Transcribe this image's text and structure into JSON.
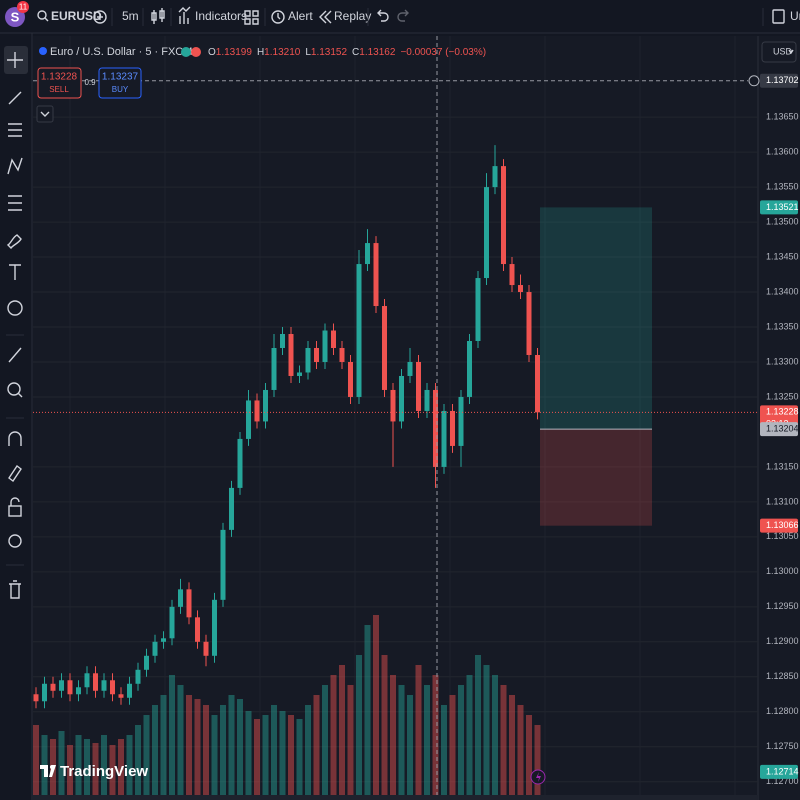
{
  "toolbar": {
    "avatar": "S",
    "badge": "11",
    "symbol": "EURUSD",
    "interval": "5m",
    "indicators": "Indicators",
    "alert": "Alert",
    "replay": "Replay",
    "right": "Ur"
  },
  "legend": {
    "title": "Euro / U.S. Dollar · 5 · FXCM",
    "ohlc": [
      {
        "label": "O",
        "value": "1.13199"
      },
      {
        "label": "H",
        "value": "1.13210"
      },
      {
        "label": "L",
        "value": "1.13152"
      },
      {
        "label": "C",
        "value": "1.13162"
      }
    ],
    "change": "−0.00037 (−0.03%)"
  },
  "trade": {
    "sell_price": "1.13228",
    "sell": "SELL",
    "spread": "0.9",
    "buy_price": "1.13237",
    "buy": "BUY"
  },
  "currency": "USD",
  "logo": "TradingView",
  "chart_data": {
    "type": "candlestick",
    "up_color": "#26a69a",
    "down_color": "#ef5350",
    "grid": true,
    "ylim": [
      1.12681,
      1.13766
    ],
    "yticks": [
      {
        "value": 1.1365,
        "label": "1.13650"
      },
      {
        "value": 1.136,
        "label": "1.13600"
      },
      {
        "value": 1.1355,
        "label": "1.13550"
      },
      {
        "value": 1.135,
        "label": "1.13500"
      },
      {
        "value": 1.1345,
        "label": "1.13450"
      },
      {
        "value": 1.134,
        "label": "1.13400"
      },
      {
        "value": 1.1335,
        "label": "1.13350"
      },
      {
        "value": 1.133,
        "label": "1.13300"
      },
      {
        "value": 1.1325,
        "label": "1.13250"
      },
      {
        "value": 1.1315,
        "label": "1.13150"
      },
      {
        "value": 1.131,
        "label": "1.13100"
      },
      {
        "value": 1.1305,
        "label": "1.13050"
      },
      {
        "value": 1.13,
        "label": "1.13000"
      },
      {
        "value": 1.1295,
        "label": "1.12950"
      },
      {
        "value": 1.129,
        "label": "1.12900"
      },
      {
        "value": 1.1285,
        "label": "1.12850"
      },
      {
        "value": 1.128,
        "label": "1.12800"
      },
      {
        "value": 1.1275,
        "label": "1.12750"
      },
      {
        "value": 1.127,
        "label": "1.12700"
      }
    ],
    "open": [
      1.12825,
      1.12815,
      1.1284,
      1.1283,
      1.12845,
      1.12825,
      1.12835,
      1.12855,
      1.1283,
      1.12845,
      1.12825,
      1.1282,
      1.1284,
      1.1286,
      1.1288,
      1.129,
      1.12905,
      1.1295,
      1.12975,
      1.12935,
      1.129,
      1.1288,
      1.1296,
      1.1306,
      1.1312,
      1.1319,
      1.13245,
      1.13215,
      1.1326,
      1.1332,
      1.1334,
      1.1328,
      1.13285,
      1.1332,
      1.133,
      1.13345,
      1.1332,
      1.133,
      1.1325,
      1.1344,
      1.1347,
      1.1338,
      1.1326,
      1.13215,
      1.1328,
      1.133,
      1.1323,
      1.1326,
      1.1315,
      1.1323,
      1.1318,
      1.1325,
      1.1333,
      1.1342,
      1.1355,
      1.1358,
      1.1344,
      1.1341,
      1.134,
      1.1331
    ],
    "high": [
      1.12835,
      1.1285,
      1.1285,
      1.12855,
      1.12855,
      1.12845,
      1.12865,
      1.12865,
      1.12855,
      1.12855,
      1.12835,
      1.1285,
      1.1287,
      1.1289,
      1.1291,
      1.12915,
      1.1296,
      1.1299,
      1.12985,
      1.12945,
      1.1291,
      1.1297,
      1.1307,
      1.1313,
      1.132,
      1.1326,
      1.13255,
      1.1327,
      1.1334,
      1.1335,
      1.1335,
      1.13295,
      1.1333,
      1.1333,
      1.13355,
      1.13355,
      1.1333,
      1.1331,
      1.1346,
      1.1349,
      1.1348,
      1.1339,
      1.1327,
      1.1329,
      1.1332,
      1.1331,
      1.1327,
      1.1327,
      1.1324,
      1.1324,
      1.1326,
      1.1334,
      1.1343,
      1.1357,
      1.1361,
      1.1359,
      1.1345,
      1.13425,
      1.1341,
      1.1332
    ],
    "low": [
      1.12805,
      1.12805,
      1.1282,
      1.1282,
      1.12815,
      1.12815,
      1.12825,
      1.1282,
      1.1282,
      1.12815,
      1.1281,
      1.1281,
      1.1283,
      1.1285,
      1.1287,
      1.1289,
      1.12895,
      1.1294,
      1.12925,
      1.1289,
      1.12865,
      1.1287,
      1.1295,
      1.1305,
      1.1311,
      1.1318,
      1.13205,
      1.13205,
      1.1325,
      1.1331,
      1.1327,
      1.1327,
      1.13275,
      1.1329,
      1.1329,
      1.1331,
      1.1329,
      1.1324,
      1.1324,
      1.1343,
      1.1337,
      1.1325,
      1.1315,
      1.13205,
      1.1327,
      1.1322,
      1.1322,
      1.1312,
      1.1314,
      1.1317,
      1.1315,
      1.1324,
      1.1332,
      1.1341,
      1.1354,
      1.1343,
      1.134,
      1.1339,
      1.133,
      1.13218
    ],
    "close": [
      1.12815,
      1.1284,
      1.1283,
      1.12845,
      1.12825,
      1.12835,
      1.12855,
      1.1283,
      1.12845,
      1.12825,
      1.1282,
      1.1284,
      1.1286,
      1.1288,
      1.129,
      1.12905,
      1.1295,
      1.12975,
      1.12935,
      1.129,
      1.1288,
      1.1296,
      1.1306,
      1.1312,
      1.1319,
      1.13245,
      1.13215,
      1.1326,
      1.1332,
      1.1334,
      1.1328,
      1.13285,
      1.1332,
      1.133,
      1.13345,
      1.1332,
      1.133,
      1.1325,
      1.1344,
      1.1347,
      1.1338,
      1.1326,
      1.13215,
      1.1328,
      1.133,
      1.1323,
      1.1326,
      1.1315,
      1.1323,
      1.1318,
      1.1325,
      1.1333,
      1.1342,
      1.1355,
      1.1358,
      1.1344,
      1.1341,
      1.134,
      1.1331,
      1.13228
    ],
    "volume": [
      35,
      30,
      28,
      32,
      25,
      30,
      28,
      26,
      30,
      25,
      28,
      30,
      35,
      40,
      45,
      50,
      60,
      55,
      50,
      48,
      45,
      40,
      45,
      50,
      48,
      42,
      38,
      40,
      45,
      42,
      40,
      38,
      45,
      50,
      55,
      60,
      65,
      55,
      70,
      85,
      90,
      70,
      60,
      55,
      50,
      65,
      55,
      60,
      45,
      50,
      55,
      60,
      70,
      65,
      60,
      55,
      50,
      45,
      40,
      35
    ],
    "markers": {
      "crosshair": 1.13702,
      "target": 1.13521,
      "current": 1.13228,
      "countdown": "03:13",
      "entry": 1.13204,
      "stop": 1.13066,
      "bottom": 1.12714
    }
  }
}
